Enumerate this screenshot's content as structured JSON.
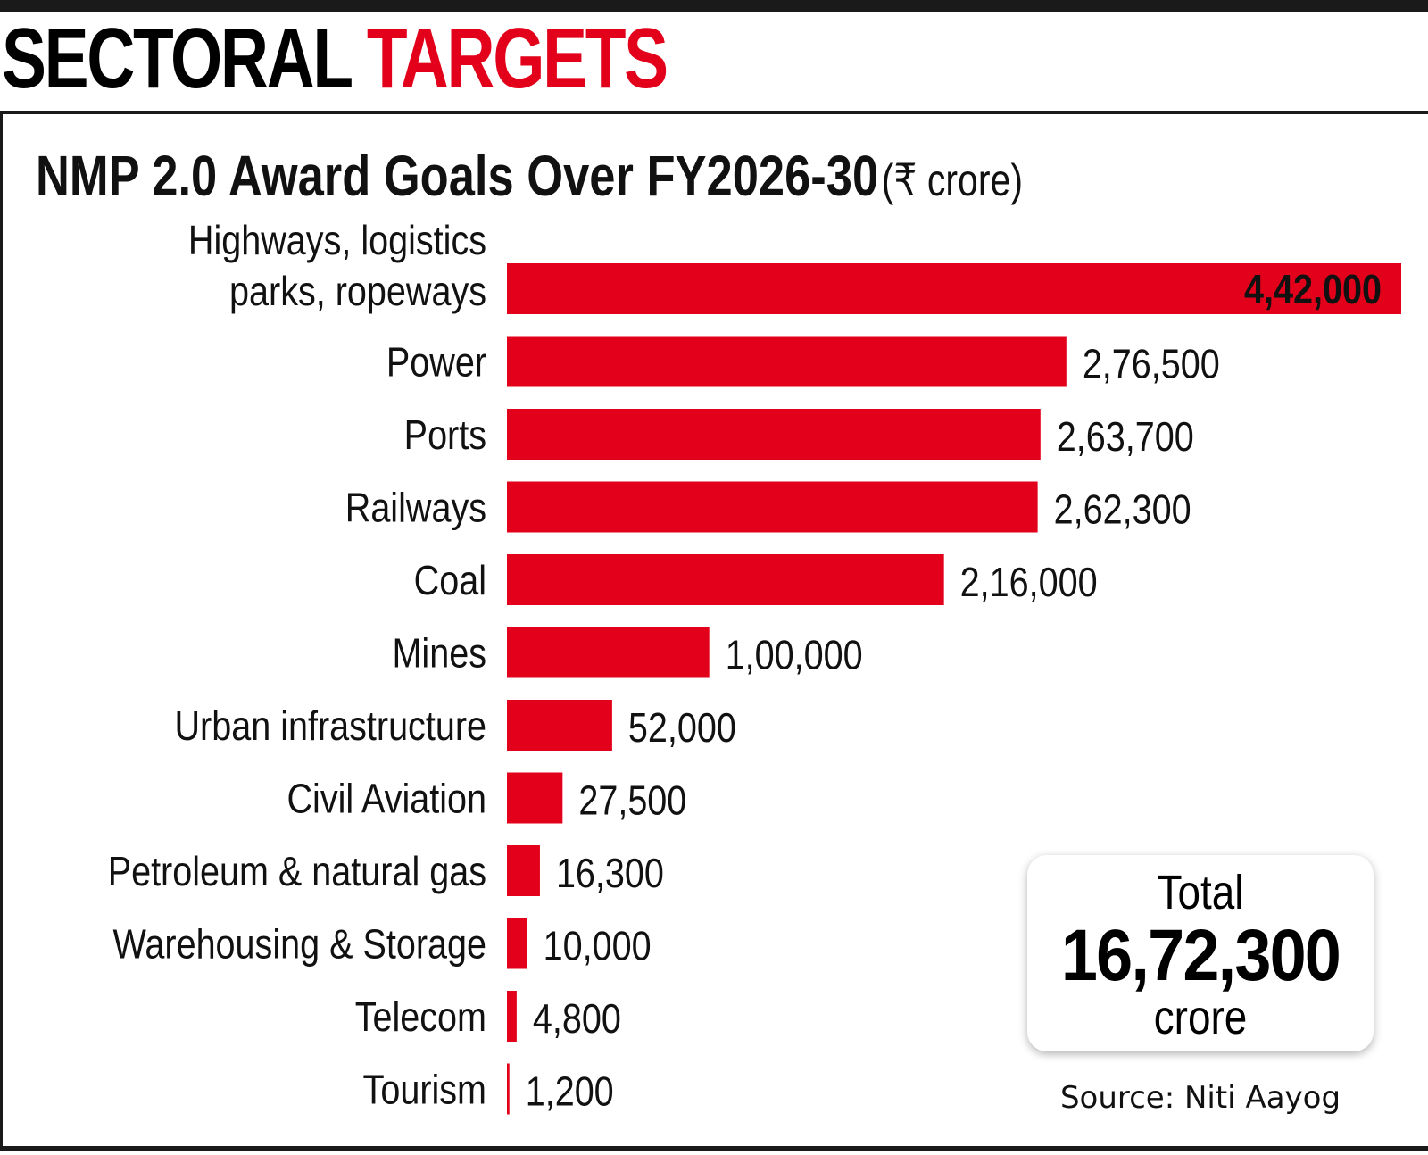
{
  "headline": {
    "part1": "SECTORAL",
    "part2": "TARGETS"
  },
  "subtitle": {
    "main": "NMP 2.0 Award Goals Over FY2026-30",
    "unit": "(₹ crore)"
  },
  "chart_data": {
    "type": "bar",
    "orientation": "horizontal",
    "title": "NMP 2.0 Award Goals Over FY2026-30",
    "unit": "(₹ crore)",
    "categories": [
      [
        "Highways, logistics",
        "parks, ropeways"
      ],
      [
        "Power"
      ],
      [
        "Ports"
      ],
      [
        "Railways"
      ],
      [
        "Coal"
      ],
      [
        "Mines"
      ],
      [
        "Urban infrastructure"
      ],
      [
        "Civil Aviation"
      ],
      [
        "Petroleum & natural gas"
      ],
      [
        "Warehousing & Storage"
      ],
      [
        "Telecom"
      ],
      [
        "Tourism"
      ]
    ],
    "values": [
      442000,
      276500,
      263700,
      262300,
      216000,
      100000,
      52000,
      27500,
      16300,
      10000,
      4800,
      1200
    ],
    "data_labels": [
      "4,42,000",
      "2,76,500",
      "2,63,700",
      "2,62,300",
      "2,16,000",
      "1,00,000",
      "52,000",
      "27,500",
      "16,300",
      "10,000",
      "4,800",
      "1,200"
    ],
    "xlim": [
      0,
      442000
    ],
    "grid": false,
    "bar_color": "#e2001a"
  },
  "total": {
    "label": "Total",
    "value": "16,72,300",
    "unit": "crore"
  },
  "source": "Source: Niti Aayog"
}
